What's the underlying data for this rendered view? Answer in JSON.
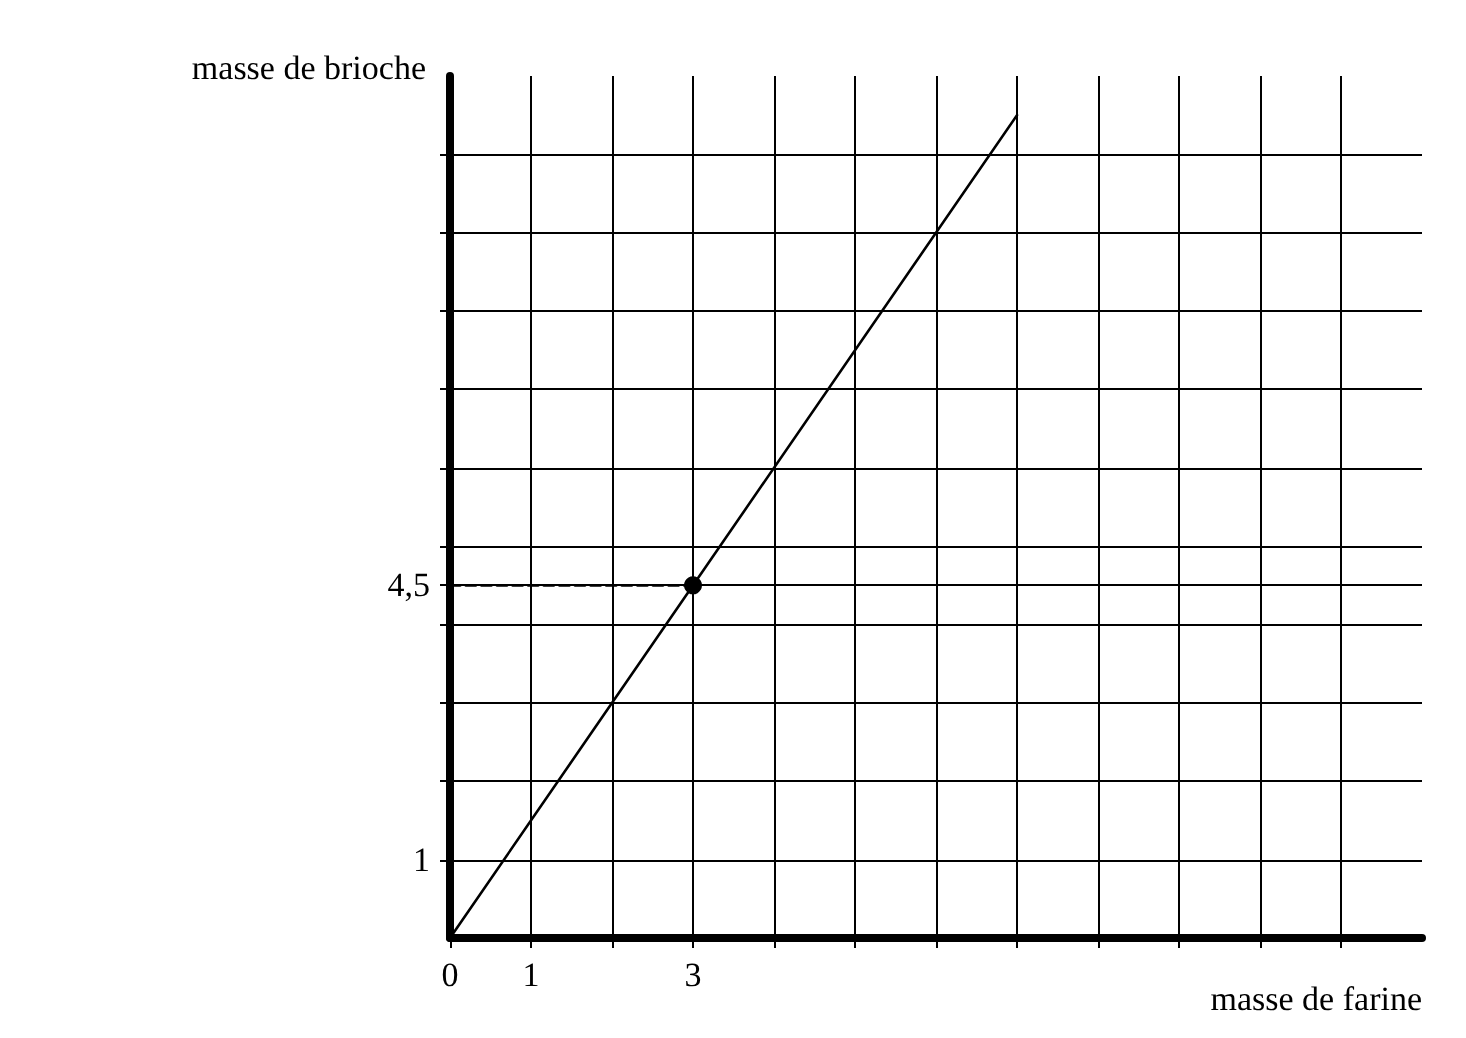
{
  "chart_data": {
    "type": "line",
    "xlabel": "masse de farine",
    "ylabel": "masse de brioche",
    "xlim": [
      0,
      12
    ],
    "ylim": [
      0,
      11
    ],
    "xticks": [
      0,
      1,
      {
        "value": 2,
        "label": null
      },
      3,
      {
        "value": 4,
        "label": null
      },
      {
        "value": 5,
        "label": null
      },
      {
        "value": 6,
        "label": null
      },
      {
        "value": 7,
        "label": null
      },
      {
        "value": 8,
        "label": null
      },
      {
        "value": 9,
        "label": null
      },
      {
        "value": 10,
        "label": null
      },
      {
        "value": 11,
        "label": null
      }
    ],
    "yticks": [
      1,
      {
        "value": 2,
        "label": null
      },
      {
        "value": 3,
        "label": null
      },
      {
        "value": 4,
        "label": null
      },
      {
        "value": 4.5,
        "label": "4,5"
      },
      {
        "value": 5,
        "label": null
      },
      {
        "value": 6,
        "label": null
      },
      {
        "value": 7,
        "label": null
      },
      {
        "value": 8,
        "label": null
      },
      {
        "value": 9,
        "label": null
      },
      {
        "value": 10,
        "label": null
      }
    ],
    "grid": true,
    "series": [
      {
        "x": [
          0,
          7
        ],
        "values": [
          0,
          10.5
        ],
        "color": "#000000",
        "marker": "none",
        "line_style": "solid"
      },
      {
        "x": [
          0,
          3
        ],
        "values": [
          4.5,
          4.5
        ],
        "color": "#000000",
        "marker": "none",
        "line_style": "dashed"
      },
      {
        "type": "scatter",
        "x": [
          3
        ],
        "values": [
          4.5
        ],
        "color": "#000000",
        "marker": "circle"
      }
    ]
  }
}
